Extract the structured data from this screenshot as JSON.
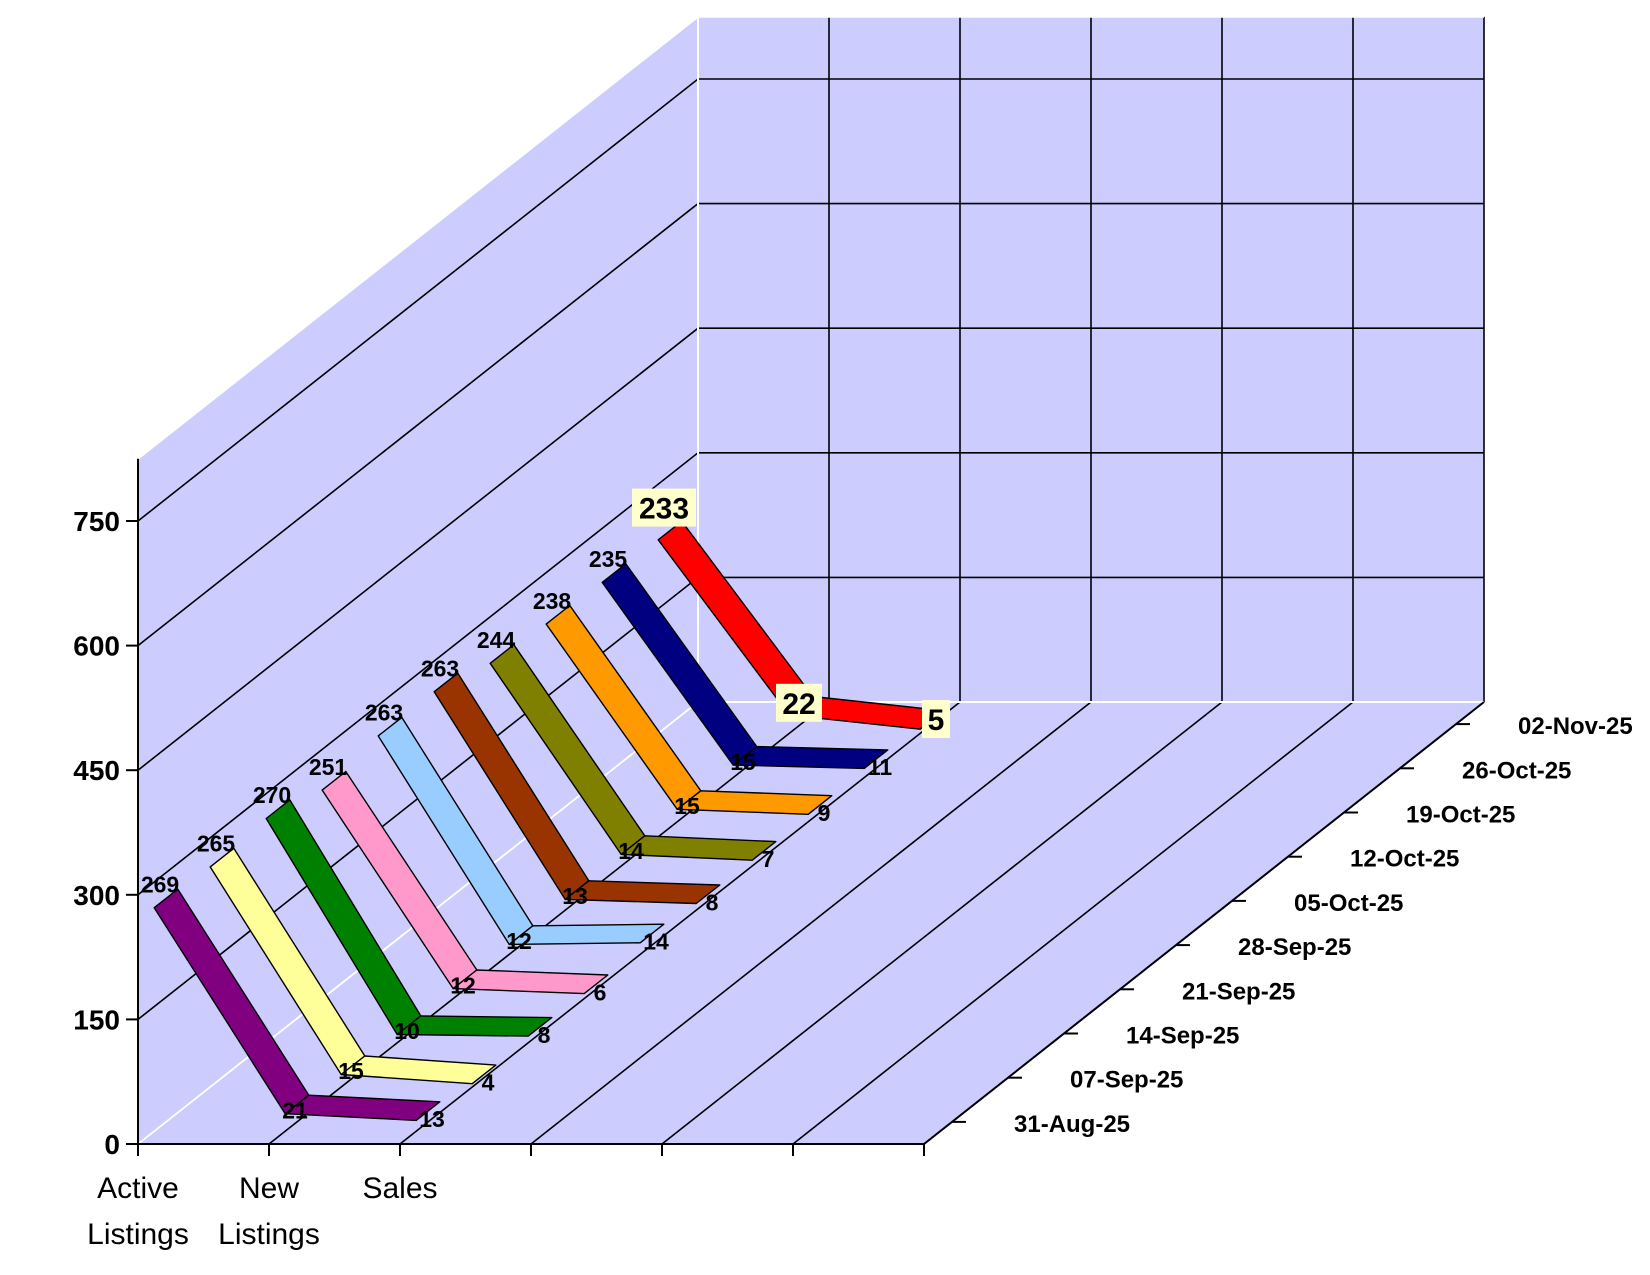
{
  "chart_data": {
    "type": "line",
    "subtype": "3d-ribbon",
    "categories": [
      [
        "Active",
        "Listings"
      ],
      [
        "New",
        "Listings"
      ],
      [
        "Sales"
      ]
    ],
    "y_ticks": [
      "0",
      "150",
      "300",
      "450",
      "600",
      "750"
    ],
    "ylim": [
      0,
      750
    ],
    "grid": true,
    "series": [
      {
        "name": "31-Aug-25",
        "values": [
          269,
          21,
          13
        ],
        "color": "#800080"
      },
      {
        "name": "07-Sep-25",
        "values": [
          265,
          15,
          4
        ],
        "color": "#ffff99"
      },
      {
        "name": "14-Sep-25",
        "values": [
          270,
          10,
          8
        ],
        "color": "#008000"
      },
      {
        "name": "21-Sep-25",
        "values": [
          251,
          12,
          6
        ],
        "color": "#ff99cc"
      },
      {
        "name": "28-Sep-25",
        "values": [
          263,
          12,
          14
        ],
        "color": "#99ccff"
      },
      {
        "name": "05-Oct-25",
        "values": [
          263,
          13,
          8
        ],
        "color": "#993300"
      },
      {
        "name": "12-Oct-25",
        "values": [
          244,
          14,
          7
        ],
        "color": "#808000"
      },
      {
        "name": "19-Oct-25",
        "values": [
          238,
          15,
          9
        ],
        "color": "#ff9900"
      },
      {
        "name": "26-Oct-25",
        "values": [
          235,
          15,
          11
        ],
        "color": "#000080"
      },
      {
        "name": "02-Nov-25",
        "values": [
          233,
          22,
          5
        ],
        "color": "#ff0000"
      }
    ],
    "highlight_series": "02-Nov-25",
    "background_color": "#ccccff",
    "label_highlight_color": "#ffffcc"
  }
}
